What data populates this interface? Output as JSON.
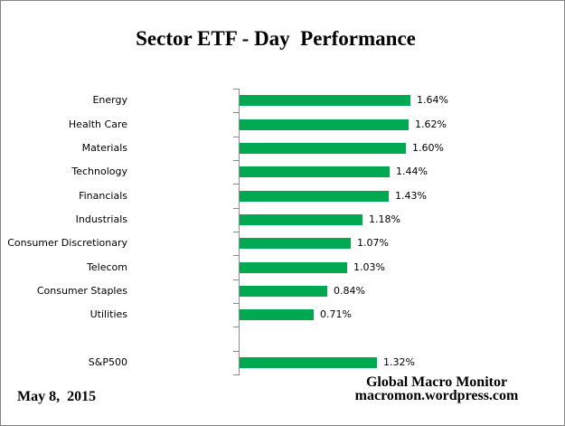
{
  "title": "Sector ETF - Day  Performance",
  "footer": {
    "date": "May 8,  2015",
    "attribution_line1": "Global Macro Monitor",
    "attribution_line2": "macromon.wordpress.com"
  },
  "colors": {
    "bar": "#00a851",
    "axis": "#8c8c8c",
    "border": "#858585",
    "text": "#000000",
    "background": "#ffffff"
  },
  "chart_data": {
    "type": "bar",
    "orientation": "horizontal",
    "title": "Sector ETF - Day  Performance",
    "xlabel": "",
    "ylabel": "",
    "categories": [
      "Energy",
      "Health Care",
      "Materials",
      "Technology",
      "Financials",
      "Industrials",
      "Consumer Discretionary",
      "Telecom",
      "Consumer Staples",
      "Utilities",
      "",
      "S&P500"
    ],
    "values": [
      1.64,
      1.62,
      1.6,
      1.44,
      1.43,
      1.18,
      1.07,
      1.03,
      0.84,
      0.71,
      null,
      1.32
    ],
    "value_labels": [
      "1.64%",
      "1.62%",
      "1.60%",
      "1.44%",
      "1.43%",
      "1.18%",
      "1.07%",
      "1.03%",
      "0.84%",
      "0.71%",
      "",
      "1.32%"
    ],
    "xlim": [
      0,
      1.8
    ],
    "grid": false,
    "legend": false,
    "data_labels": true
  }
}
